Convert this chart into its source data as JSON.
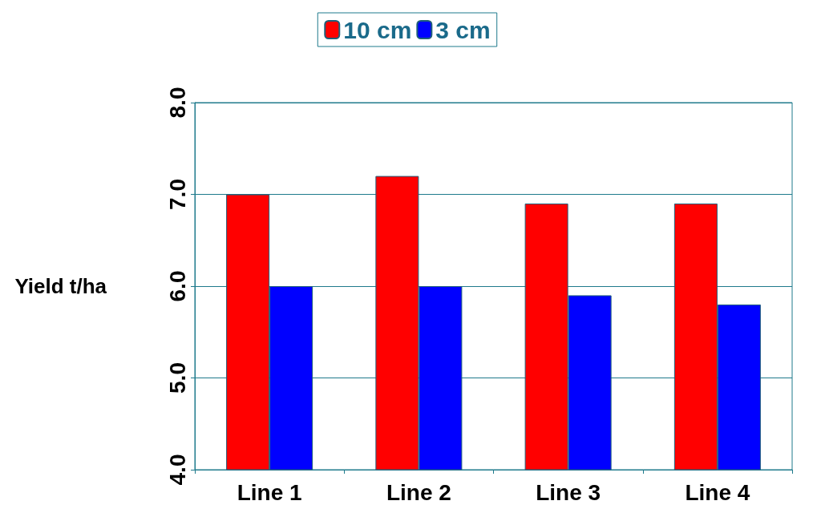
{
  "chart_data": {
    "type": "bar",
    "categories": [
      "Line 1",
      "Line 2",
      "Line 3",
      "Line 4"
    ],
    "series": [
      {
        "name": "10 cm",
        "color": "#ff0000",
        "values": [
          7.0,
          7.2,
          6.9,
          6.9
        ]
      },
      {
        "name": "3 cm",
        "color": "#0000ff",
        "values": [
          6.0,
          6.0,
          5.9,
          5.8
        ]
      }
    ],
    "ylabel": "Yield t/ha",
    "ylim": [
      4,
      8
    ],
    "yticks": [
      {
        "value": 4,
        "label": "4.0"
      },
      {
        "value": 5,
        "label": "5.0"
      },
      {
        "value": 6,
        "label": "6.0"
      },
      {
        "value": 7,
        "label": "7.0"
      },
      {
        "value": 8,
        "label": "8.0"
      }
    ],
    "grid": "y",
    "legend": "top"
  }
}
